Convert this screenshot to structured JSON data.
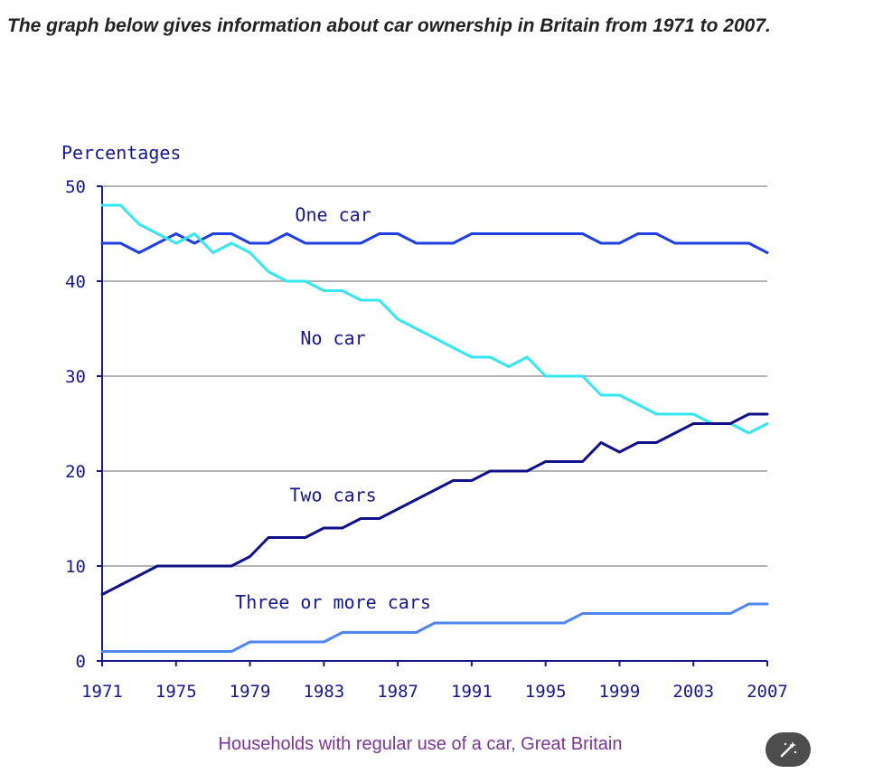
{
  "heading": "The graph below gives information about car ownership in Britain from 1971 to 2007.",
  "caption": "Households with regular use of a car, Great Britain",
  "colors": {
    "text": "#17178c",
    "grid": "#9a9a9a",
    "caption": "#7b3596",
    "button": "#4d4d4d"
  },
  "icons": {
    "edit_button": "magic-wand-icon"
  },
  "chart_data": {
    "type": "line",
    "title": "",
    "ylabel": "Percentages",
    "xlabel": "",
    "xlim": [
      1971,
      2007
    ],
    "ylim": [
      0,
      50
    ],
    "yticks": [
      0,
      10,
      20,
      30,
      40,
      50
    ],
    "xticks": [
      1971,
      1975,
      1979,
      1983,
      1987,
      1991,
      1995,
      1999,
      2003,
      2007
    ],
    "grid": true,
    "x": [
      1971,
      1972,
      1973,
      1974,
      1975,
      1976,
      1977,
      1978,
      1979,
      1980,
      1981,
      1982,
      1983,
      1984,
      1985,
      1986,
      1987,
      1988,
      1989,
      1990,
      1991,
      1992,
      1993,
      1994,
      1995,
      1996,
      1997,
      1998,
      1999,
      2000,
      2001,
      2002,
      2003,
      2004,
      2005,
      2006,
      2007
    ],
    "series": [
      {
        "name": "One car",
        "color": "#1f3fe0",
        "values": [
          44,
          44,
          43,
          44,
          45,
          44,
          45,
          45,
          44,
          44,
          45,
          44,
          44,
          44,
          44,
          45,
          45,
          44,
          44,
          44,
          45,
          45,
          45,
          45,
          45,
          45,
          45,
          44,
          44,
          45,
          45,
          44,
          44,
          44,
          44,
          44,
          43
        ],
        "label_at": [
          1983.5,
          47
        ]
      },
      {
        "name": "No car",
        "color": "#33e6f0",
        "values": [
          48,
          48,
          46,
          45,
          44,
          45,
          43,
          44,
          43,
          41,
          40,
          40,
          39,
          39,
          38,
          38,
          36,
          35,
          34,
          33,
          32,
          32,
          31,
          32,
          30,
          30,
          30,
          28,
          28,
          27,
          26,
          26,
          26,
          25,
          25,
          24,
          25
        ],
        "label_at": [
          1983.5,
          34
        ]
      },
      {
        "name": "Two cars",
        "color": "#10108a",
        "values": [
          7,
          8,
          9,
          10,
          10,
          10,
          10,
          10,
          11,
          13,
          13,
          13,
          14,
          14,
          15,
          15,
          16,
          17,
          18,
          19,
          19,
          20,
          20,
          20,
          21,
          21,
          21,
          23,
          22,
          23,
          23,
          24,
          25,
          25,
          25,
          26,
          26
        ],
        "label_at": [
          1983.5,
          17.5
        ]
      },
      {
        "name": "Three or more cars",
        "color": "#4f86f0",
        "values": [
          1,
          1,
          1,
          1,
          1,
          1,
          1,
          1,
          2,
          2,
          2,
          2,
          2,
          3,
          3,
          3,
          3,
          3,
          4,
          4,
          4,
          4,
          4,
          4,
          4,
          4,
          5,
          5,
          5,
          5,
          5,
          5,
          5,
          5,
          5,
          6,
          6
        ],
        "label_at": [
          1983.5,
          6.2
        ]
      }
    ]
  }
}
